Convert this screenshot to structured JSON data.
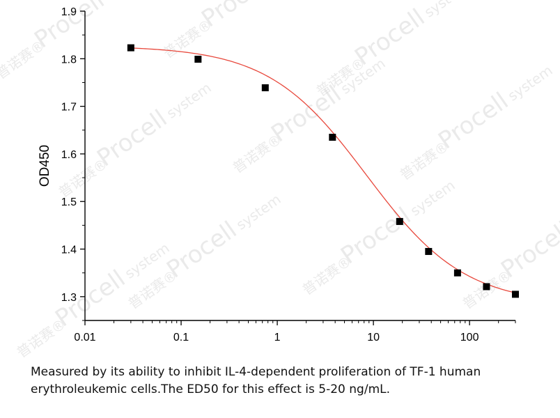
{
  "watermark": {
    "brand": "Procell",
    "brand_suffix": "system",
    "cn": "普诺赛®"
  },
  "chart_data": {
    "type": "scatter",
    "x_scale": "log",
    "xlim": [
      0.01,
      300
    ],
    "ylim": [
      1.25,
      1.9
    ],
    "xticks": [
      0.01,
      0.1,
      1,
      10,
      100
    ],
    "xtick_labels": [
      "0.01",
      "0.1",
      "1",
      "10",
      "100"
    ],
    "yticks": [
      1.3,
      1.4,
      1.5,
      1.6,
      1.7,
      1.8,
      1.9
    ],
    "ytick_labels": [
      "1.3",
      "1.4",
      "1.5",
      "1.6",
      "1.7",
      "1.8",
      "1.9"
    ],
    "xlabel": "",
    "ylabel": "OD450",
    "title": "",
    "grid": false,
    "series": [
      {
        "marker": "square",
        "color": "#000000",
        "x": [
          0.03,
          0.15,
          0.75,
          3.75,
          18.75,
          37.5,
          75,
          150,
          300
        ],
        "y": [
          1.823,
          1.799,
          1.739,
          1.635,
          1.458,
          1.395,
          1.35,
          1.321,
          1.305
        ]
      }
    ],
    "fit_curve": {
      "model": "4PL",
      "color": "#e8483c",
      "top": 1.827,
      "bottom": 1.283,
      "ec50": 8.5,
      "hill": 0.85
    }
  },
  "caption": {
    "text": "Measured by its ability to inhibit IL-4-dependent proliferation of TF-1 human erythroleukemic cells.The ED50 for this effect is 5-20 ng/mL."
  }
}
